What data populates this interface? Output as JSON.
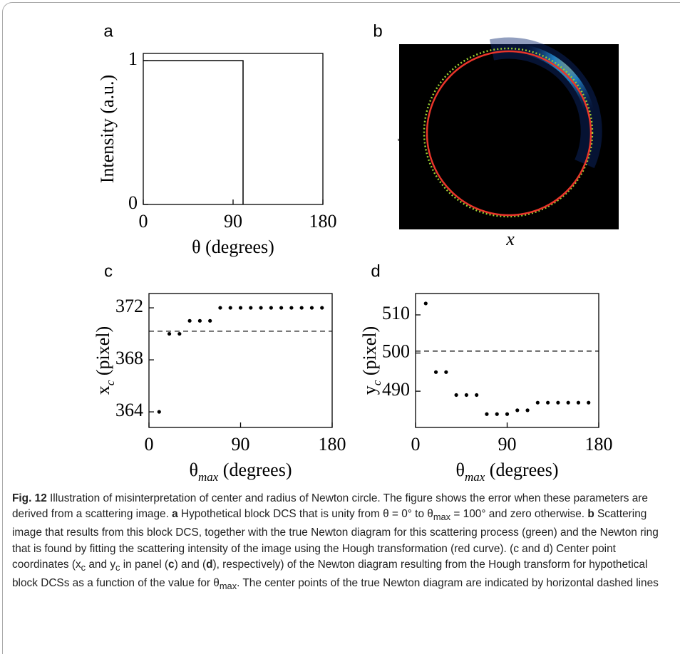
{
  "chart_data": [
    {
      "type": "line",
      "label": "a",
      "xlabel": {
        "main": "θ",
        "rest": " (degrees)"
      },
      "ylabel": {
        "main": "Intensity (a.u.)"
      },
      "x": [
        0,
        100,
        100
      ],
      "values": [
        1,
        1,
        0
      ],
      "color": "#000000",
      "xlim": [
        0,
        180
      ],
      "xticks": [
        0,
        90,
        180
      ],
      "ylim": [
        0,
        1.05
      ],
      "yticks": [
        0,
        1
      ]
    },
    {
      "type": "image",
      "label": "b",
      "xlabel": {
        "main": "x"
      },
      "ylabel": {
        "main": "y"
      }
    },
    {
      "type": "scatter",
      "label": "c",
      "xlabel": {
        "main": "θ",
        "sub": "max",
        "rest": " (degrees)"
      },
      "ylabel": {
        "main": "x",
        "sub": "c",
        "rest": " (pixel)"
      },
      "x": [
        10,
        20,
        30,
        40,
        50,
        60,
        70,
        80,
        90,
        100,
        110,
        120,
        130,
        140,
        150,
        160,
        170
      ],
      "values": [
        364,
        370,
        370,
        371,
        371,
        371,
        372,
        372,
        372,
        372,
        372,
        372,
        372,
        372,
        372,
        372,
        372
      ],
      "color": "#000000",
      "hline": 370.2,
      "xlim": [
        0,
        180
      ],
      "xticks": [
        0,
        90,
        180
      ],
      "ylim": [
        362.8,
        373.1
      ],
      "yticks": [
        364,
        368,
        372
      ]
    },
    {
      "type": "scatter",
      "label": "d",
      "xlabel": {
        "main": "θ",
        "sub": "max",
        "rest": " (degrees)"
      },
      "ylabel": {
        "main": "y",
        "sub": "c",
        "rest": " (pixel)"
      },
      "x": [
        10,
        20,
        30,
        40,
        50,
        60,
        70,
        80,
        90,
        100,
        110,
        120,
        130,
        140,
        150,
        160,
        170
      ],
      "values": [
        513,
        495,
        495,
        489,
        489,
        489,
        484,
        484,
        484,
        485,
        485,
        487,
        487,
        487,
        487,
        487,
        487
      ],
      "color": "#000000",
      "hline": 500.5,
      "xlim": [
        0,
        180
      ],
      "xticks": [
        0,
        90,
        180
      ],
      "ylim": [
        480.5,
        515.6
      ],
      "yticks": [
        490,
        500,
        510
      ]
    }
  ],
  "caption": [
    "Fig. 12",
    " Illustration of misinterpretation of center and radius of Newton circle. The figure shows the error when these parameters are derived from a scattering image. ",
    "a",
    " Hypothetical block DCS that is unity from θ = 0° to θ",
    "max",
    " = 100° and zero otherwise. ",
    "b",
    " Scattering image that results from this block DCS, together with the true Newton diagram for this scattering process (green) and the Newton ring that is found by fitting the scattering intensity of the image using the Hough transformation (red curve). (c and d) Center point coordinates (x",
    "c",
    " and y",
    "c",
    " in panel (",
    "c",
    ") and (",
    "d",
    "), respectively) of the Newton diagram resulting from the Hough transform for hypothetical block DCSs as a function of the value for θ",
    "max",
    ". The center points of the true Newton diagram are indicated by horizontal dashed lines"
  ]
}
